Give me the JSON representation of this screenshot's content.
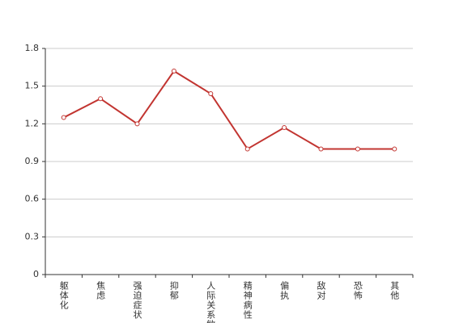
{
  "chart_data": {
    "type": "line",
    "categories": [
      "躯体化",
      "焦虑",
      "强迫症状",
      "抑郁",
      "人际关系敏感",
      "精神病性",
      "偏执",
      "敌对",
      "恐怖",
      "其他"
    ],
    "values": [
      1.25,
      1.4,
      1.2,
      1.62,
      1.44,
      1.0,
      1.17,
      1.0,
      1.0,
      1.0
    ],
    "color": "#c23531",
    "ylim": [
      0,
      1.8
    ],
    "yticks": [
      0,
      0.3,
      0.6,
      0.9,
      1.2,
      1.5,
      1.8
    ],
    "grid": true
  }
}
